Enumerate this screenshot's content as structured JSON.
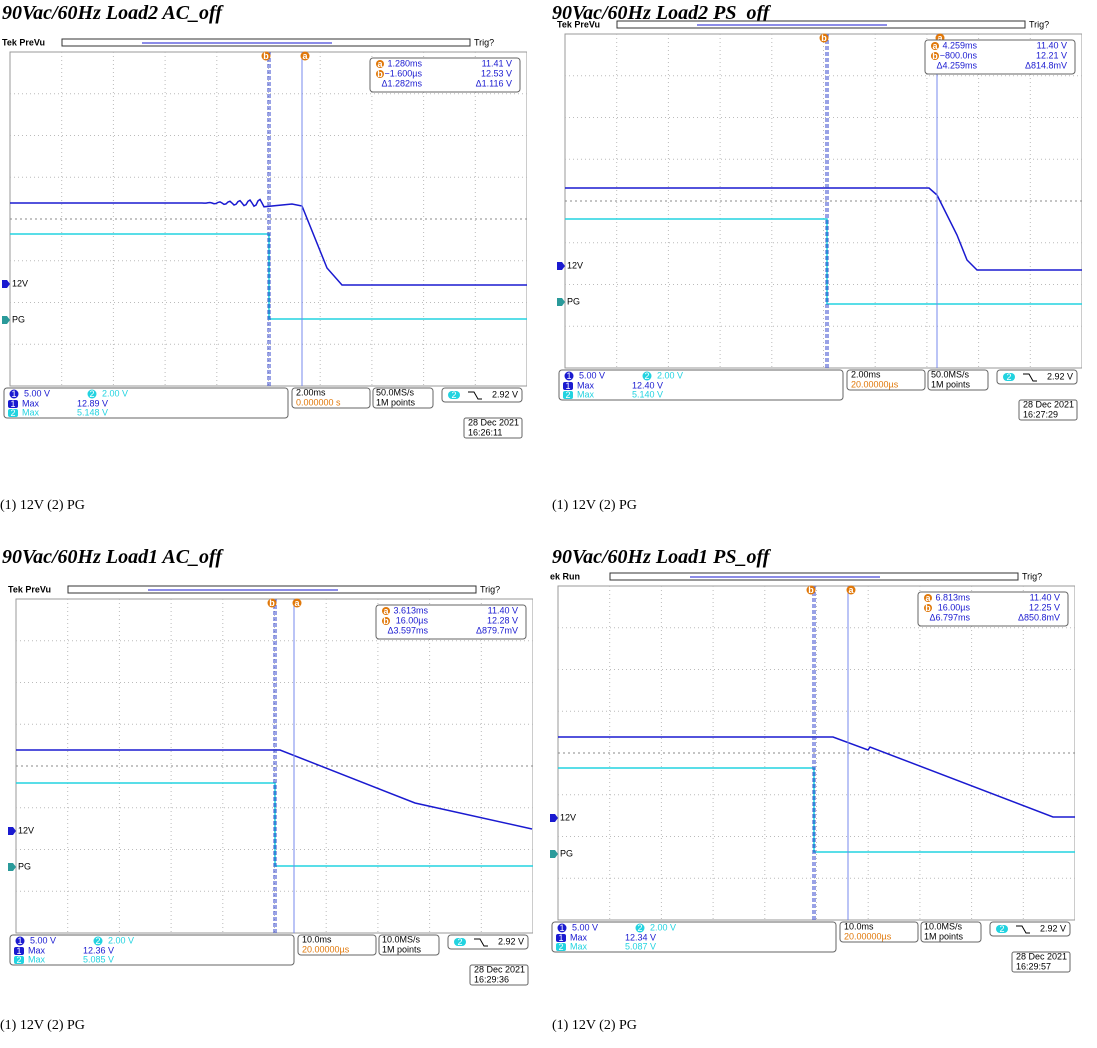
{
  "panels": [
    {
      "title": "90Vac/60Hz Load2 AC_off",
      "header": {
        "label": "Tek PreVu",
        "trigger": "Trig?"
      },
      "cursors": {
        "a": {
          "label": "a",
          "time": "1.280ms",
          "value": "11.41 V"
        },
        "b": {
          "label": "b",
          "time": "−1.600µs",
          "value": "12.53 V"
        },
        "delta": {
          "time": "Δ1.282ms",
          "value": "Δ1.116 V"
        }
      },
      "channels": [
        {
          "number": "1",
          "scale": "5.00 V",
          "max_label": "Max",
          "max": "12.89 V",
          "ground_label": "12V"
        },
        {
          "number": "2",
          "scale": "2.00 V",
          "max_label": "Max",
          "max": "5.148 V",
          "ground_label": "PG"
        }
      ],
      "timebase": "2.00ms",
      "trigger_position": "0.000000 s",
      "sample_rate": "50.0MS/s",
      "record": "1M points",
      "trigger_level": "2.92 V",
      "date": "28 Dec  2021",
      "time": "16:26:11",
      "caption": "(1) 12V (2) PG"
    },
    {
      "title": "90Vac/60Hz Load2 PS_off",
      "header": {
        "label": "Tek PreVu",
        "trigger": "Trig?"
      },
      "cursors": {
        "a": {
          "label": "a",
          "time": "4.259ms",
          "value": "11.40 V"
        },
        "b": {
          "label": "b",
          "time": "−800.0ns",
          "value": "12.21 V"
        },
        "delta": {
          "time": "Δ4.259ms",
          "value": "Δ814.8mV"
        }
      },
      "channels": [
        {
          "number": "1",
          "scale": "5.00 V",
          "max_label": "Max",
          "max": "12.40 V",
          "ground_label": "12V"
        },
        {
          "number": "2",
          "scale": "2.00 V",
          "max_label": "Max",
          "max": "5.140 V",
          "ground_label": "PG"
        }
      ],
      "timebase": "2.00ms",
      "trigger_position": "20.00000µs",
      "sample_rate": "50.0MS/s",
      "record": "1M points",
      "trigger_level": "2.92 V",
      "date": "28 Dec  2021",
      "time": "16:27:29",
      "caption": "(1) 12V (2) PG"
    },
    {
      "title": "90Vac/60Hz Load1 AC_off",
      "header": {
        "label": "Tek PreVu",
        "trigger": "Trig?"
      },
      "cursors": {
        "a": {
          "label": "a",
          "time": "3.613ms",
          "value": "11.40 V"
        },
        "b": {
          "label": "b",
          "time": "16.00µs",
          "value": "12.28 V"
        },
        "delta": {
          "time": "Δ3.597ms",
          "value": "Δ879.7mV"
        }
      },
      "channels": [
        {
          "number": "1",
          "scale": "5.00 V",
          "max_label": "Max",
          "max": "12.36 V",
          "ground_label": "12V"
        },
        {
          "number": "2",
          "scale": "2.00 V",
          "max_label": "Max",
          "max": "5.085 V",
          "ground_label": "PG"
        }
      ],
      "timebase": "10.0ms",
      "trigger_position": "20.00000µs",
      "sample_rate": "10.0MS/s",
      "record": "1M points",
      "trigger_level": "2.92 V",
      "date": "28 Dec  2021",
      "time": "16:29:36",
      "caption": "(1) 12V (2) PG"
    },
    {
      "title": "90Vac/60Hz Load1 PS_off",
      "header": {
        "label": "ek Run",
        "trigger": "Trig?"
      },
      "cursors": {
        "a": {
          "label": "a",
          "time": "6.813ms",
          "value": "11.40 V"
        },
        "b": {
          "label": "b",
          "time": "16.00µs",
          "value": "12.25 V"
        },
        "delta": {
          "time": "Δ6.797ms",
          "value": "Δ850.8mV"
        }
      },
      "channels": [
        {
          "number": "1",
          "scale": "5.00 V",
          "max_label": "Max",
          "max": "12.34 V",
          "ground_label": "12V"
        },
        {
          "number": "2",
          "scale": "2.00 V",
          "max_label": "Max",
          "max": "5.087 V",
          "ground_label": "PG"
        }
      ],
      "timebase": "10.0ms",
      "trigger_position": "20.00000µs",
      "sample_rate": "10.0MS/s",
      "record": "1M points",
      "trigger_level": "2.92 V",
      "date": "28 Dec  2021",
      "time": "16:29:57",
      "caption": "(1) 12V (2) PG"
    }
  ]
}
